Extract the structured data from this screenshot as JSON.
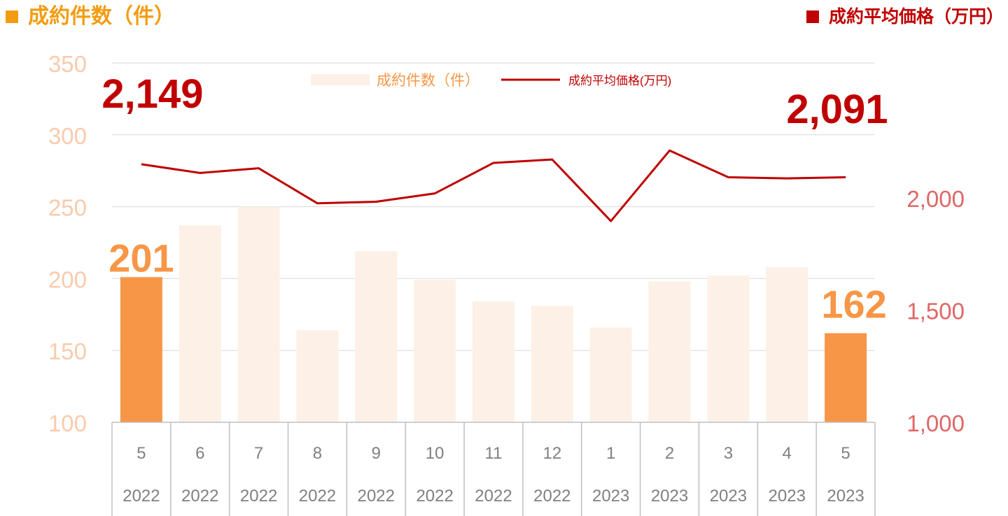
{
  "header": {
    "left_label": "成約件数（件）",
    "right_label": "成約平均価格（万円）"
  },
  "colors": {
    "header_left": "#f39c12",
    "header_right": "#c00000",
    "bar_highlight": "#f79646",
    "bar_faded": "#fdf0e6",
    "line": "#c00000",
    "left_axis_text": "#f8cbad",
    "right_axis_text": "#e06666",
    "grid": "#d9d9d9"
  },
  "chart_data": {
    "type": "bar",
    "categories": [
      "5",
      "6",
      "7",
      "8",
      "9",
      "10",
      "11",
      "12",
      "1",
      "2",
      "3",
      "4",
      "5"
    ],
    "category_years": [
      "2022",
      "2022",
      "2022",
      "2022",
      "2022",
      "2022",
      "2022",
      "2022",
      "2023",
      "2023",
      "2023",
      "2023",
      "2023"
    ],
    "series": [
      {
        "name": "成約件数（件）",
        "type": "bar",
        "axis": "left",
        "values": [
          201,
          237,
          250,
          164,
          219,
          199,
          184,
          181,
          166,
          198,
          202,
          208,
          162
        ],
        "highlight": [
          true,
          false,
          false,
          false,
          false,
          false,
          false,
          false,
          false,
          false,
          false,
          false,
          true
        ]
      },
      {
        "name": "成約平均価格(万円)",
        "type": "line",
        "axis": "right",
        "values": [
          2149,
          2110,
          2131,
          1975,
          1982,
          2019,
          2155,
          2170,
          1896,
          2210,
          2091,
          2086,
          2091
        ]
      }
    ],
    "ylim_left": [
      100,
      350
    ],
    "yticks_left": [
      "100",
      "150",
      "200",
      "250",
      "300",
      "350"
    ],
    "yticks_left_values": [
      100,
      150,
      200,
      250,
      300,
      350
    ],
    "ylim_right": [
      1000,
      2600
    ],
    "yticks_right": [
      "1,000",
      "1,500",
      "2,000"
    ],
    "yticks_right_values": [
      1000,
      1500,
      2000
    ],
    "annotations": {
      "bar_first": "201",
      "bar_last": "162",
      "line_first": "2,149",
      "line_last": "2,091"
    },
    "legend": {
      "position": "top-center",
      "bar_label": "成約件数（件）",
      "line_label": "成約平均価格(万円)"
    },
    "grid": true
  }
}
